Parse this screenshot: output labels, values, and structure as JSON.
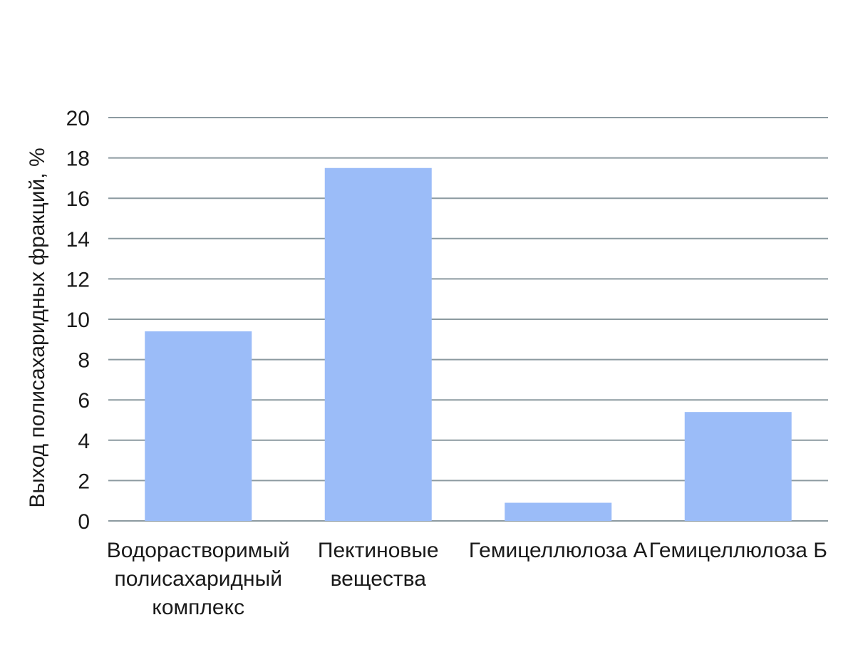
{
  "chart_data": {
    "type": "bar",
    "title": "",
    "xlabel": "",
    "ylabel": "Выход полисахаридных фракций, %",
    "categories": [
      [
        "Водорастворимый",
        "полисахаридный",
        "комплекс"
      ],
      [
        "Пектиновые",
        "вещества"
      ],
      [
        "Гемицеллюлоза А"
      ],
      [
        "Гемицеллюлоза Б"
      ]
    ],
    "values": [
      9.4,
      17.5,
      0.9,
      5.4
    ],
    "ylim": [
      0,
      20
    ],
    "yticks": [
      "0",
      "2",
      "4",
      "6",
      "8",
      "10",
      "12",
      "14",
      "16",
      "18",
      "20"
    ],
    "grid": true,
    "legend": "none",
    "bar_color": "#9bbcf8",
    "grid_color": "#8c9aa0"
  }
}
